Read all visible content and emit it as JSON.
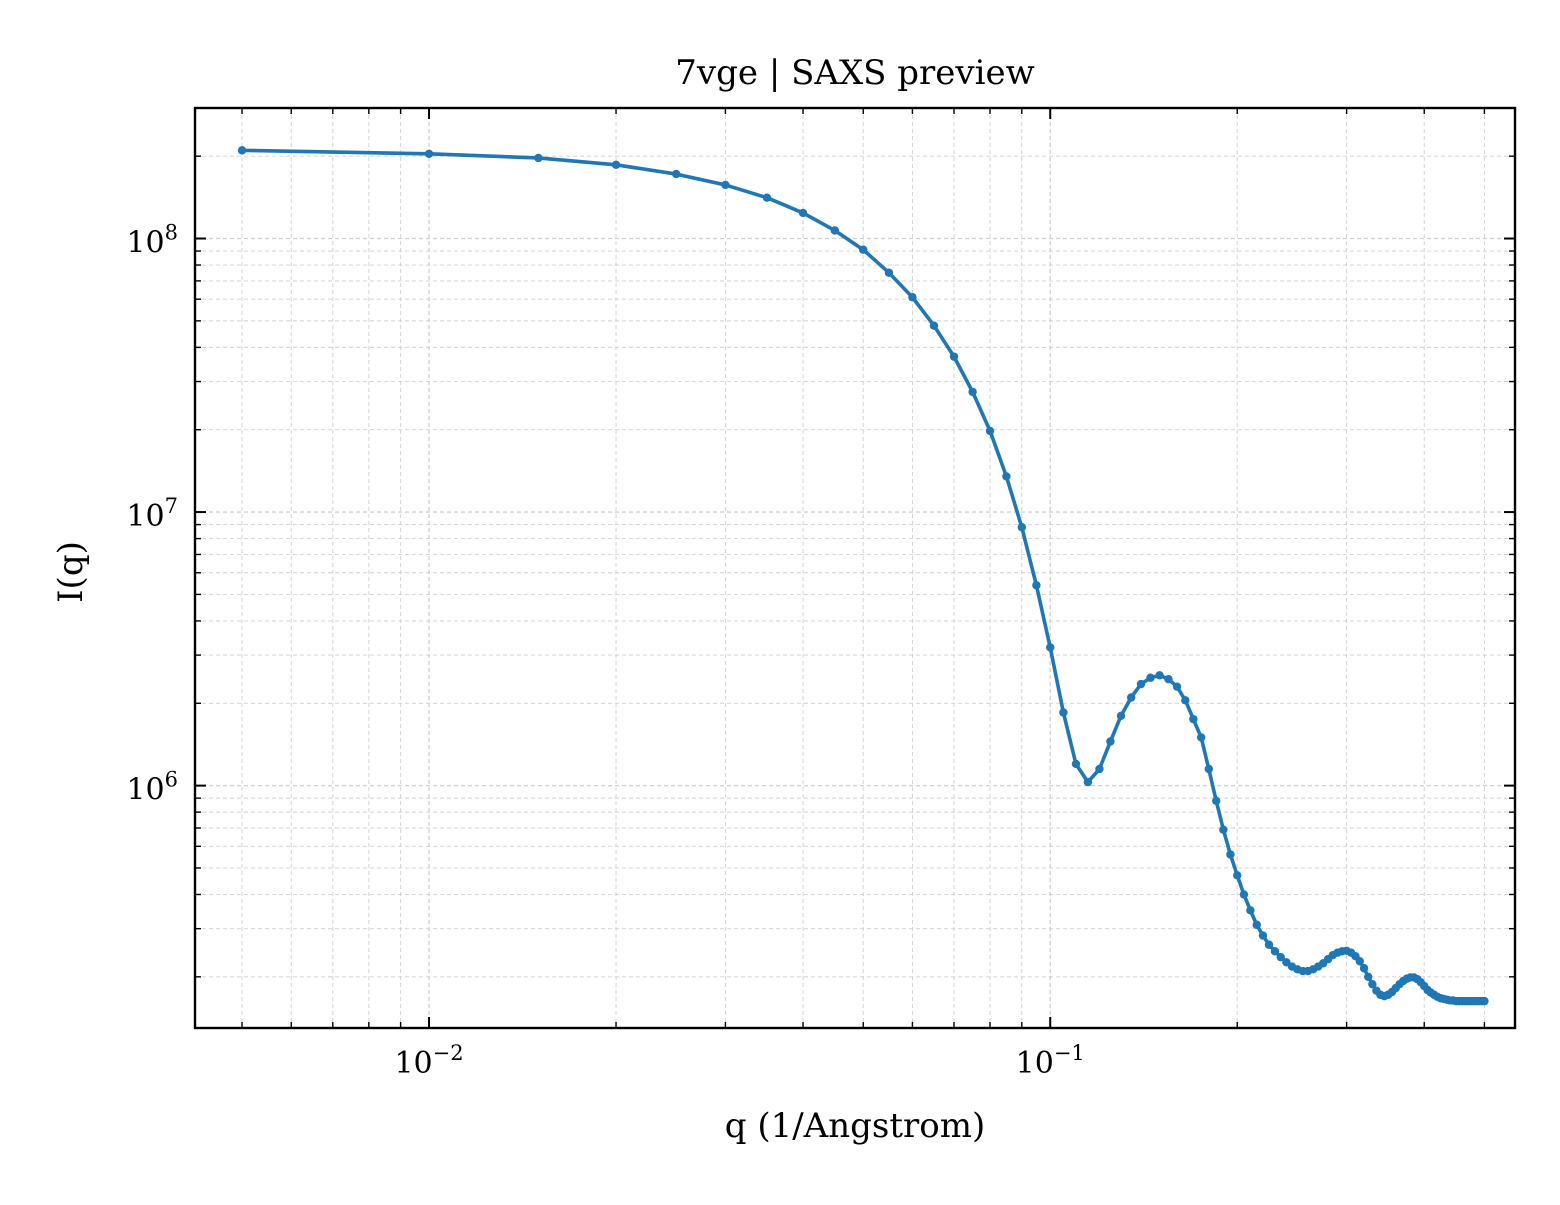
{
  "chart_data": {
    "type": "line",
    "title": "7vge | SAXS preview",
    "xlabel": "q (1/Angstrom)",
    "ylabel": "I(q)",
    "x_scale": "log",
    "y_scale": "log",
    "xlim": [
      0.0042,
      0.56
    ],
    "ylim": [
      130000,
      300000000
    ],
    "grid": true,
    "grid_style": "dashed, major and minor",
    "legend": "none",
    "marker": "small filled circle",
    "x_ticks": [
      {
        "value": 0.01,
        "base": "10",
        "exp": "−2"
      },
      {
        "value": 0.1,
        "base": "10",
        "exp": "−1"
      }
    ],
    "y_ticks": [
      {
        "value": 1000000,
        "base": "10",
        "exp": "6"
      },
      {
        "value": 10000000,
        "base": "10",
        "exp": "7"
      },
      {
        "value": 100000000,
        "base": "10",
        "exp": "8"
      }
    ],
    "colors": {
      "series": "#1f77b4",
      "grid": "#d0d0d0",
      "axes": "#000000"
    },
    "series": [
      {
        "x": [
          0.005,
          0.01,
          0.015,
          0.02,
          0.025,
          0.03,
          0.035,
          0.04,
          0.045,
          0.05,
          0.055,
          0.06,
          0.065,
          0.07,
          0.075,
          0.08,
          0.085,
          0.09,
          0.095,
          0.1,
          0.105,
          0.11,
          0.115,
          0.12,
          0.125,
          0.13,
          0.135,
          0.14,
          0.145,
          0.15,
          0.155,
          0.16,
          0.165,
          0.17,
          0.175,
          0.18,
          0.185,
          0.19,
          0.195,
          0.2,
          0.205,
          0.21,
          0.215,
          0.22,
          0.225,
          0.23,
          0.235,
          0.24,
          0.245,
          0.25,
          0.255,
          0.26,
          0.265,
          0.27,
          0.275,
          0.28,
          0.285,
          0.29,
          0.295,
          0.3,
          0.305,
          0.31,
          0.315,
          0.32,
          0.325,
          0.33,
          0.335,
          0.34,
          0.345,
          0.35,
          0.355,
          0.36,
          0.365,
          0.37,
          0.375,
          0.38,
          0.385,
          0.39,
          0.395,
          0.4,
          0.405,
          0.41,
          0.415,
          0.42,
          0.425,
          0.43,
          0.435,
          0.44,
          0.445,
          0.45,
          0.455,
          0.46,
          0.465,
          0.47,
          0.475,
          0.48,
          0.485,
          0.49,
          0.495,
          0.5
        ],
        "y": [
          210000000,
          204000000,
          197000000,
          186000000,
          172000000,
          157000000,
          141000000,
          124000000,
          107000000,
          91000000,
          75000000,
          61000000,
          48000000,
          37000000,
          27500000,
          19800000,
          13500000,
          8800000,
          5400000,
          3200000,
          1850000,
          1200000,
          1030000,
          1150000,
          1450000,
          1800000,
          2100000,
          2350000,
          2480000,
          2530000,
          2450000,
          2300000,
          2050000,
          1750000,
          1500000,
          1150000,
          880000,
          690000,
          560000,
          470000,
          400000,
          350000,
          310000,
          283000,
          262000,
          248000,
          236000,
          226000,
          218000,
          213000,
          210000,
          210000,
          213000,
          218000,
          224000,
          232000,
          240000,
          245000,
          248000,
          249000,
          245000,
          238000,
          228000,
          215000,
          200000,
          188000,
          178000,
          172000,
          170000,
          172000,
          176000,
          182000,
          188000,
          193000,
          197000,
          199000,
          199000,
          196000,
          191000,
          185000,
          179000,
          175000,
          172000,
          169000,
          167000,
          166000,
          165000,
          164000,
          164000,
          163000,
          163000,
          163000,
          163000,
          163000,
          163000,
          163000,
          163000,
          163000,
          163000,
          163000
        ]
      }
    ]
  }
}
